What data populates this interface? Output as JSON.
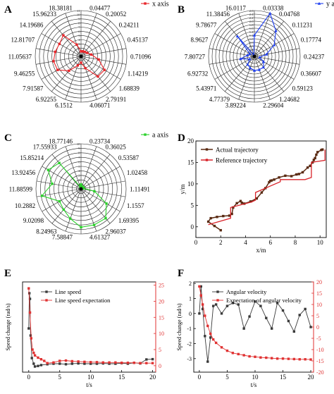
{
  "chart_data": [
    {
      "panel": "A",
      "type": "polar",
      "legend": "x axis",
      "legend_placement": "top-right",
      "angle_labels": [
        "0.04477",
        "0.20052",
        "0.24211",
        "0.45137",
        "0.71096",
        "1.14219",
        "1.68839",
        "2.79191",
        "4.06071",
        "6.1512",
        "6.92255",
        "7.91587",
        "9.46255",
        "11.05637",
        "12.81707",
        "14.19686",
        "15.96233",
        "18.38181"
      ],
      "radial_ticks": [
        "0",
        "1",
        "2",
        "3",
        "4",
        "5",
        "6",
        "7",
        "8",
        "9",
        "10",
        "11"
      ],
      "rlim": [
        0,
        11
      ],
      "values": [
        1.2,
        1.3,
        1.4,
        1.7,
        2.5,
        4.3,
        6.5,
        6.3,
        3.0,
        1.5,
        2.3,
        4.5,
        6.5,
        6.7,
        6.3,
        6.0,
        6.6,
        3.0
      ],
      "color": "#e8262b"
    },
    {
      "panel": "B",
      "type": "polar",
      "legend": "y axis",
      "legend_placement": "top-right",
      "angle_labels": [
        "0.03338",
        "0.04768",
        "0.11231",
        "0.17774",
        "0.24237",
        "0.36607",
        "0.59123",
        "1.24682",
        "2.29604",
        "3.89224",
        "4.77379",
        "5.43971",
        "6.92732",
        "7.80727",
        "8.9627",
        "9.78677",
        "11.38456",
        "16.0117"
      ],
      "radial_ticks": [
        "0",
        "0.2",
        "0.4",
        "0.6",
        "0.8",
        "1.0",
        "1.2",
        "1.4",
        "1.6",
        "1.8",
        "2.0",
        "2.2",
        "2.4",
        "2.6"
      ],
      "rlim": [
        0,
        2.6
      ],
      "values": [
        1.2,
        2.6,
        1.9,
        1.3,
        0.7,
        0.3,
        0.6,
        0.8,
        0.8,
        0.8,
        0.7,
        0.6,
        0.3,
        0.8,
        0.4,
        0.3,
        1.5,
        0.1
      ],
      "color": "#1f3ff0"
    },
    {
      "panel": "C",
      "type": "polar",
      "legend": "a axis",
      "legend_placement": "top-right",
      "angle_labels": [
        "0.23734",
        "0.36025",
        "0.53587",
        "1.02458",
        "1.11491",
        "1.1557",
        "1.69395",
        "2.96037",
        "4.61327",
        "7.58847",
        "8.24963",
        "9.02098",
        "10.2882",
        "11.88599",
        "13.92456",
        "15.85214",
        "17.55933",
        "18.77146"
      ],
      "radial_ticks": [
        "0",
        "1",
        "2",
        "3",
        "4",
        "5",
        "6",
        "7",
        "8",
        "9",
        "10"
      ],
      "rlim": [
        0,
        10
      ],
      "values": [
        1.0,
        0.5,
        0.6,
        0.5,
        0.6,
        3.0,
        6.5,
        8.5,
        8.5,
        8.5,
        7.0,
        6.0,
        5.5,
        8.8,
        6.5,
        8.4,
        7.5,
        0.5
      ],
      "color": "#2bd12b"
    },
    {
      "panel": "D",
      "type": "line",
      "xlabel": "x/m",
      "ylabel": "y/m",
      "xlim": [
        0,
        10.5
      ],
      "ylim": [
        -2.5,
        20
      ],
      "xticks": [
        0,
        2,
        4,
        6,
        8,
        10
      ],
      "yticks": [
        0,
        5,
        10,
        15,
        20
      ],
      "legend_placement": "top-left",
      "series": [
        {
          "name": "Actual trajectory",
          "color": "#5a2a12",
          "x": [
            2.0,
            1.5,
            1.0,
            1.2,
            1.7,
            2.2,
            2.7,
            2.9,
            3.0,
            3.3,
            3.6,
            3.7,
            3.9,
            4.4,
            4.9,
            5.3,
            5.6,
            5.9,
            6.0,
            6.1,
            6.3,
            6.7,
            7.2,
            7.7,
            8.1,
            8.3,
            8.6,
            9.0,
            9.2,
            9.4,
            9.5,
            9.6,
            9.7,
            9.8,
            10.1,
            10.2
          ],
          "y": [
            -0.8,
            0.2,
            1.2,
            2.0,
            2.3,
            2.5,
            2.6,
            3.0,
            4.5,
            5.5,
            6.0,
            5.6,
            5.4,
            5.9,
            6.6,
            8.0,
            9.0,
            10.4,
            10.7,
            10.8,
            11.0,
            11.5,
            11.9,
            11.8,
            12.2,
            12.3,
            12.7,
            13.8,
            14.2,
            15.0,
            15.6,
            16.0,
            16.8,
            17.4,
            17.9,
            18.0
          ]
        },
        {
          "name": "Reference trajectory",
          "color": "#d8232a",
          "x": [
            1.0,
            2.8,
            2.8,
            4.5,
            4.8,
            4.8,
            6.8,
            6.8,
            8.8,
            9.3,
            9.3,
            10.4,
            10.4
          ],
          "y": [
            0.5,
            2.0,
            4.5,
            5.8,
            6.2,
            8.0,
            10.5,
            11.0,
            11.0,
            11.5,
            15.0,
            15.5,
            18.0
          ]
        }
      ]
    },
    {
      "panel": "E",
      "type": "line",
      "xlabel": "t/s",
      "ylabel": "Speed change (rad/s)",
      "xlim": [
        -1,
        20.5
      ],
      "ylim_left": [
        0,
        3.2
      ],
      "ylim_right": [
        -2,
        26
      ],
      "xticks": [
        0,
        5,
        10,
        15,
        20
      ],
      "yticks_right": [
        0,
        5,
        10,
        15,
        20,
        25
      ],
      "legend_placement": "top-center",
      "series": [
        {
          "name": "Line speed",
          "axis": "left",
          "color": "#3a3a3a",
          "x": [
            0,
            0.1,
            0.2,
            0.3,
            0.5,
            0.8,
            1.0,
            1.5,
            2.0,
            3.0,
            4.0,
            5.0,
            6.0,
            7.0,
            8.0,
            9.0,
            10.0,
            11.0,
            12.0,
            13.0,
            14.0,
            15.0,
            16.0,
            17.0,
            18.0,
            19.0,
            20.0
          ],
          "y": [
            1.55,
            2.8,
            2.6,
            1.3,
            0.5,
            0.3,
            0.2,
            0.22,
            0.25,
            0.28,
            0.3,
            0.3,
            0.28,
            0.3,
            0.31,
            0.3,
            0.3,
            0.3,
            0.31,
            0.3,
            0.3,
            0.32,
            0.3,
            0.33,
            0.31,
            0.45,
            0.46
          ]
        },
        {
          "name": "Line speed expectation",
          "axis": "right",
          "color": "#e03232",
          "x": [
            0,
            0.2,
            0.4,
            0.6,
            0.8,
            1.0,
            1.5,
            2.0,
            2.5,
            3.0,
            4.0,
            5.0,
            6.0,
            7.0,
            8.0,
            9.0,
            10.0,
            11.0,
            12.0,
            13.0,
            14.0,
            15.0,
            16.0,
            17.0,
            18.0,
            19.0,
            20.0
          ],
          "y": [
            24.0,
            16.5,
            8.5,
            5.0,
            4.0,
            3.2,
            2.5,
            2.0,
            1.5,
            0.8,
            1.0,
            1.5,
            1.6,
            1.4,
            1.3,
            1.2,
            1.1,
            1.1,
            1.0,
            1.0,
            1.0,
            0.9,
            0.9,
            0.9,
            0.8,
            0.8,
            0.8
          ]
        }
      ]
    },
    {
      "panel": "F",
      "type": "line",
      "xlabel": "t/s",
      "ylabel": "Speed change (rad/s)",
      "xlim": [
        -1,
        20.5
      ],
      "ylim_left": [
        -3.9,
        2.1
      ],
      "ylim_right": [
        -20,
        20
      ],
      "xticks": [
        0,
        5,
        10,
        15,
        20
      ],
      "yticks_left": [
        -3,
        -2,
        -1,
        0,
        1,
        2
      ],
      "yticks_right": [
        -20,
        -15,
        -10,
        -5,
        0,
        5,
        10,
        15,
        20
      ],
      "legend_placement": "top-center",
      "series": [
        {
          "name": "Angular velocity",
          "axis": "left",
          "color": "#3a3a3a",
          "x": [
            0,
            0.3,
            0.6,
            1.0,
            1.5,
            2.0,
            2.5,
            3.0,
            4.0,
            5.0,
            6.0,
            7.0,
            8.0,
            9.0,
            10.0,
            11.0,
            12.0,
            13.0,
            14.0,
            15.0,
            16.0,
            17.0,
            18.0,
            19.0,
            20.0
          ],
          "y": [
            0.0,
            1.8,
            0.3,
            -1.5,
            -3.2,
            -1.6,
            0.5,
            0.6,
            0.0,
            0.5,
            0.7,
            0.6,
            -1.0,
            -0.2,
            0.8,
            0.5,
            -0.3,
            -1.0,
            0.7,
            0.2,
            -0.5,
            -1.2,
            -0.1,
            0.3,
            -0.9
          ]
        },
        {
          "name": "Expectation of angular velocity",
          "axis": "right",
          "color": "#e03232",
          "x": [
            0,
            0.3,
            0.6,
            1.0,
            1.5,
            2.0,
            2.5,
            3.0,
            4.0,
            5.0,
            6.0,
            7.0,
            8.0,
            9.0,
            10.0,
            11.0,
            12.0,
            13.0,
            14.0,
            15.0,
            16.0,
            17.0,
            18.0,
            19.0,
            20.0
          ],
          "y": [
            18.0,
            14.0,
            10.0,
            5.0,
            0.5,
            -3.0,
            -5.5,
            -7.0,
            -9.0,
            -10.5,
            -11.5,
            -12.0,
            -12.5,
            -13.0,
            -13.2,
            -13.5,
            -13.6,
            -13.8,
            -14.0,
            -14.0,
            -14.1,
            -14.2,
            -14.3,
            -14.3,
            -14.4
          ]
        }
      ]
    }
  ]
}
